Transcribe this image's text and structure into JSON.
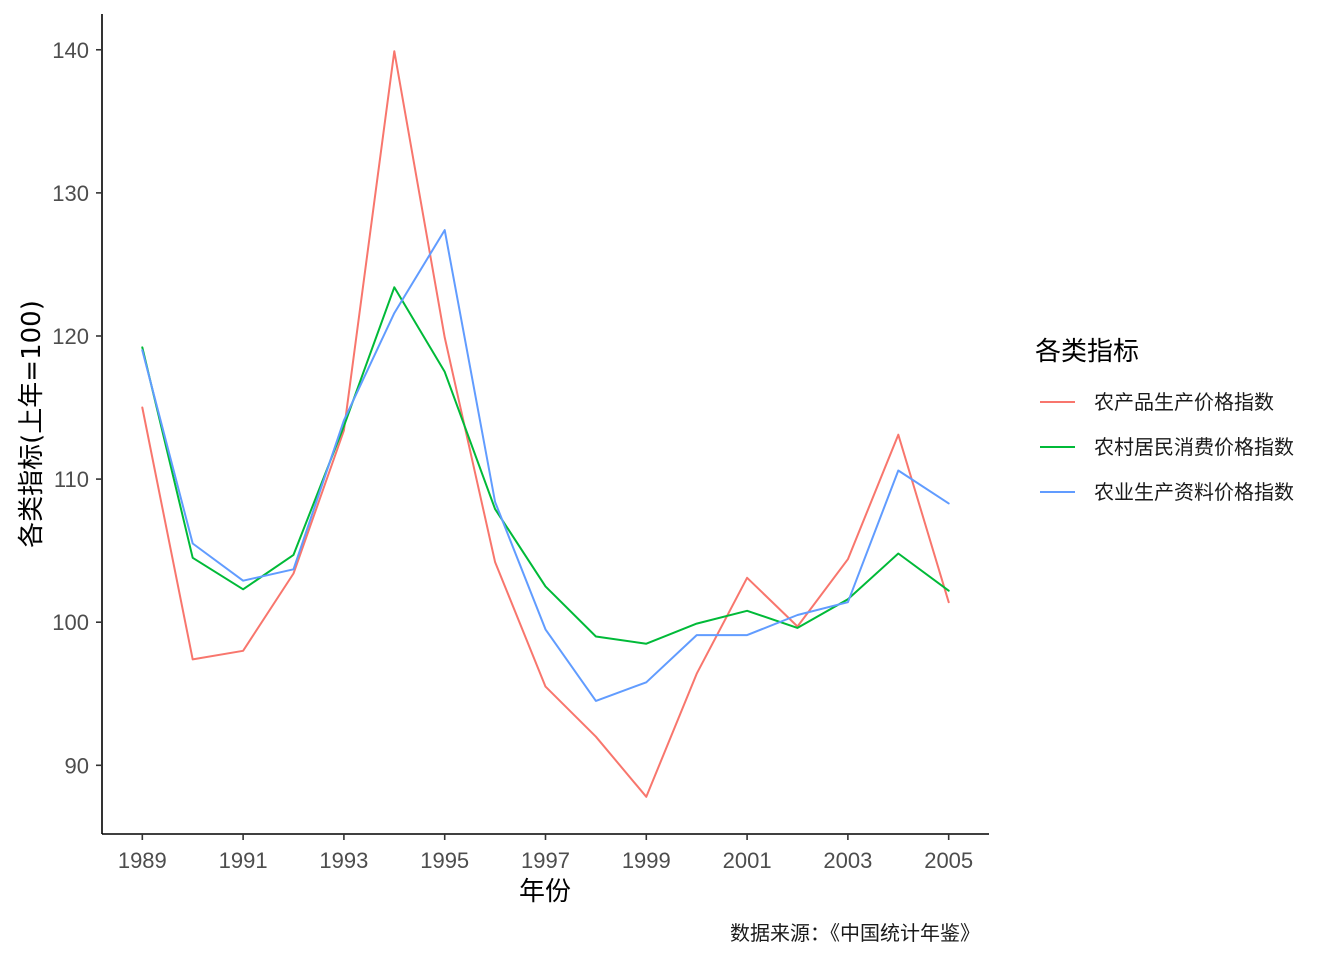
{
  "chart_data": {
    "type": "line",
    "x": [
      1989,
      1990,
      1991,
      1992,
      1993,
      1994,
      1995,
      1996,
      1997,
      1998,
      1999,
      2000,
      2001,
      2002,
      2003,
      2004,
      2005
    ],
    "series": [
      {
        "name": "农产品生产价格指数",
        "color": "#F8766D",
        "values": [
          115.0,
          97.4,
          98.0,
          103.4,
          113.4,
          139.9,
          119.9,
          104.2,
          95.5,
          92.0,
          87.8,
          96.4,
          103.1,
          99.7,
          104.4,
          113.1,
          101.4
        ]
      },
      {
        "name": "农村居民消费价格指数",
        "color": "#00BA38",
        "values": [
          119.2,
          104.5,
          102.3,
          104.7,
          113.7,
          123.4,
          117.5,
          107.9,
          102.5,
          99.0,
          98.5,
          99.9,
          100.8,
          99.6,
          101.6,
          104.8,
          102.2
        ]
      },
      {
        "name": "农业生产资料价格指数",
        "color": "#619CFF",
        "values": [
          119.0,
          105.5,
          102.9,
          103.7,
          114.1,
          121.6,
          127.4,
          108.4,
          99.5,
          94.5,
          95.8,
          99.1,
          99.1,
          100.5,
          101.4,
          110.6,
          108.3
        ]
      }
    ],
    "title": "",
    "xlabel": "年份",
    "ylabel": "各类指标(上年=100)",
    "xticks": [
      1989,
      1991,
      1993,
      1995,
      1997,
      1999,
      2001,
      2003,
      2005
    ],
    "yticks": [
      90,
      100,
      110,
      120,
      130,
      140
    ],
    "xlim": [
      1988.2,
      2005.8
    ],
    "ylim": [
      85.2,
      142.5
    ],
    "grid": false,
    "legend": {
      "title": "各类指标",
      "placement": "right"
    },
    "caption": "数据来源：《中国统计年鉴》"
  }
}
